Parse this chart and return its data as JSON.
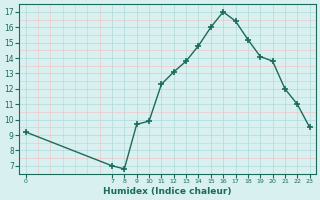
{
  "x": [
    0,
    7,
    8,
    9,
    10,
    11,
    12,
    13,
    14,
    15,
    16,
    17,
    18,
    19,
    20,
    21,
    22,
    23
  ],
  "y": [
    9.2,
    7.0,
    6.8,
    9.7,
    9.9,
    12.3,
    13.1,
    13.8,
    14.8,
    16.0,
    17.0,
    16.4,
    15.2,
    14.1,
    13.8,
    12.0,
    11.0,
    9.5
  ],
  "xlabel": "Humidex (Indice chaleur)",
  "xlim": [
    -0.5,
    23.5
  ],
  "ylim": [
    6.5,
    17.5
  ],
  "yticks": [
    7,
    8,
    9,
    10,
    11,
    12,
    13,
    14,
    15,
    16,
    17
  ],
  "xticks": [
    0,
    7,
    8,
    9,
    10,
    11,
    12,
    13,
    14,
    15,
    16,
    17,
    18,
    19,
    20,
    21,
    22,
    23
  ],
  "line_color": "#1a6b5a",
  "marker_color": "#1a6b5a",
  "bg_color": "#d8f0f0",
  "grid_color_major": "#b0d8d8",
  "grid_color_minor": "#f0c8c8"
}
